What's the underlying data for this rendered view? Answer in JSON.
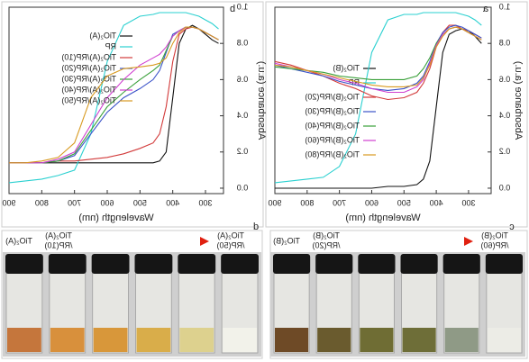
{
  "chart_data": [
    {
      "type": "line",
      "panel": "a",
      "xlabel": "Wavelength (nm)",
      "ylabel": "Absorbance (a.u.)",
      "xlim": [
        230,
        900
      ],
      "ylim": [
        -0.03,
        1.0
      ],
      "xticks": [
        300,
        400,
        500,
        600,
        700,
        800,
        900
      ],
      "yticks": [
        {
          "value": 0,
          "label": "0.0"
        },
        0.2,
        0.4,
        0.6,
        0.8,
        {
          "value": 1,
          "label": "1.0"
        }
      ],
      "x": [
        260,
        280,
        300,
        320,
        340,
        360,
        380,
        400,
        420,
        440,
        460,
        500,
        550,
        600,
        650,
        700,
        750,
        800,
        850,
        900
      ],
      "series": [
        {
          "name": "TiO₂(B)",
          "color": "#111111",
          "values": [
            0.8,
            0.84,
            0.87,
            0.88,
            0.87,
            0.85,
            0.75,
            0.45,
            0.15,
            0.05,
            0.02,
            0.01,
            0.01,
            0.0,
            0.0,
            0.0,
            0.0,
            0.0,
            0.0,
            0.0
          ]
        },
        {
          "name": "RP",
          "color": "#2ad0d0",
          "values": [
            0.9,
            0.93,
            0.95,
            0.96,
            0.97,
            0.97,
            0.97,
            0.97,
            0.97,
            0.97,
            0.96,
            0.96,
            0.93,
            0.75,
            0.3,
            0.12,
            0.06,
            0.05,
            0.04,
            0.03
          ]
        },
        {
          "name": "TiO₂(B)/RP(20)",
          "color": "#d23a3a",
          "values": [
            0.83,
            0.85,
            0.87,
            0.88,
            0.9,
            0.9,
            0.86,
            0.78,
            0.66,
            0.58,
            0.53,
            0.5,
            0.49,
            0.51,
            0.55,
            0.58,
            0.62,
            0.65,
            0.68,
            0.7
          ]
        },
        {
          "name": "TiO₂(B)/RP(30)",
          "color": "#3a52c8",
          "values": [
            0.83,
            0.85,
            0.87,
            0.89,
            0.9,
            0.89,
            0.86,
            0.8,
            0.7,
            0.62,
            0.58,
            0.55,
            0.54,
            0.55,
            0.57,
            0.59,
            0.62,
            0.64,
            0.66,
            0.68
          ]
        },
        {
          "name": "TiO₂(B)/RP(40)",
          "color": "#3aa03a",
          "values": [
            0.82,
            0.84,
            0.86,
            0.88,
            0.89,
            0.88,
            0.85,
            0.8,
            0.72,
            0.66,
            0.62,
            0.6,
            0.6,
            0.6,
            0.61,
            0.62,
            0.64,
            0.65,
            0.66,
            0.67
          ]
        },
        {
          "name": "TiO₂(B)/RP(60)",
          "color": "#d040d0",
          "values": [
            0.82,
            0.84,
            0.86,
            0.88,
            0.89,
            0.88,
            0.85,
            0.79,
            0.69,
            0.6,
            0.56,
            0.53,
            0.53,
            0.55,
            0.58,
            0.6,
            0.63,
            0.65,
            0.67,
            0.69
          ]
        },
        {
          "name": "TiO₂(B)/RP(80)",
          "color": "#d89a20",
          "values": [
            0.82,
            0.84,
            0.86,
            0.88,
            0.89,
            0.88,
            0.84,
            0.78,
            0.68,
            0.61,
            0.57,
            0.56,
            0.56,
            0.57,
            0.59,
            0.61,
            0.63,
            0.65,
            0.67,
            0.68
          ]
        }
      ]
    },
    {
      "type": "line",
      "panel": "b",
      "xlabel": "Wavelength (nm)",
      "ylabel": "Absorbance (a.u.)",
      "xlim": [
        245,
        900
      ],
      "ylim": [
        -0.03,
        1.0
      ],
      "xticks": [
        300,
        400,
        500,
        600,
        700,
        800,
        900
      ],
      "yticks": [
        {
          "value": 0,
          "label": "0.0"
        },
        0.2,
        0.4,
        0.6,
        0.8,
        {
          "value": 1,
          "label": "1.0"
        }
      ],
      "x": [
        260,
        280,
        300,
        320,
        340,
        360,
        380,
        400,
        420,
        440,
        460,
        500,
        550,
        600,
        650,
        700,
        750,
        800,
        850,
        900
      ],
      "series": [
        {
          "name": "TiO₂(A)",
          "color": "#111111",
          "values": [
            0.8,
            0.82,
            0.85,
            0.88,
            0.9,
            0.88,
            0.8,
            0.5,
            0.2,
            0.15,
            0.14,
            0.14,
            0.14,
            0.14,
            0.14,
            0.14,
            0.14,
            0.14,
            0.14,
            0.14
          ]
        },
        {
          "name": "RP",
          "color": "#2ad0d0",
          "values": [
            0.88,
            0.91,
            0.93,
            0.95,
            0.96,
            0.97,
            0.97,
            0.97,
            0.97,
            0.97,
            0.96,
            0.95,
            0.9,
            0.7,
            0.3,
            0.1,
            0.07,
            0.05,
            0.04,
            0.03
          ]
        },
        {
          "name": "TiO₂(A)/RP(10)",
          "color": "#d23a3a",
          "values": [
            0.82,
            0.84,
            0.86,
            0.88,
            0.89,
            0.88,
            0.85,
            0.7,
            0.45,
            0.3,
            0.25,
            0.22,
            0.19,
            0.17,
            0.16,
            0.15,
            0.15,
            0.14,
            0.14,
            0.14
          ]
        },
        {
          "name": "TiO₂(A)/RP(20)",
          "color": "#3a52c8",
          "values": [
            0.82,
            0.84,
            0.86,
            0.88,
            0.89,
            0.89,
            0.87,
            0.85,
            0.75,
            0.65,
            0.6,
            0.55,
            0.5,
            0.42,
            0.3,
            0.18,
            0.15,
            0.14,
            0.14,
            0.14
          ]
        },
        {
          "name": "TiO₂(A)/RP(30)",
          "color": "#3aa03a",
          "values": [
            0.82,
            0.84,
            0.86,
            0.88,
            0.89,
            0.89,
            0.87,
            0.84,
            0.76,
            0.68,
            0.65,
            0.6,
            0.53,
            0.45,
            0.32,
            0.19,
            0.15,
            0.14,
            0.14,
            0.14
          ]
        },
        {
          "name": "TiO₂(A)/RP(40)",
          "color": "#d040d0",
          "values": [
            0.82,
            0.84,
            0.86,
            0.88,
            0.89,
            0.89,
            0.87,
            0.84,
            0.78,
            0.74,
            0.72,
            0.68,
            0.6,
            0.5,
            0.35,
            0.2,
            0.16,
            0.14,
            0.14,
            0.14
          ]
        },
        {
          "name": "TiO₂(A)/RP(50)",
          "color": "#d89a20",
          "values": [
            0.82,
            0.84,
            0.86,
            0.88,
            0.89,
            0.89,
            0.86,
            0.8,
            0.72,
            0.69,
            0.68,
            0.67,
            0.66,
            0.62,
            0.5,
            0.25,
            0.17,
            0.15,
            0.14,
            0.14
          ]
        }
      ]
    }
  ],
  "photos": [
    {
      "panel": "c",
      "labels": [
        [
          "TiO₂(B)"
        ],
        [
          "TiO₂(B)",
          "/RP(20)"
        ],
        [
          "TiO₂(B)",
          "/RP(60)"
        ]
      ]
    },
    {
      "panel": "d",
      "labels": [
        [
          "TiO₂(A)"
        ],
        [
          "TiO₂(A)",
          "/RP(10)"
        ],
        [
          "TiO₂(A)",
          "/RP(50)"
        ]
      ]
    }
  ]
}
